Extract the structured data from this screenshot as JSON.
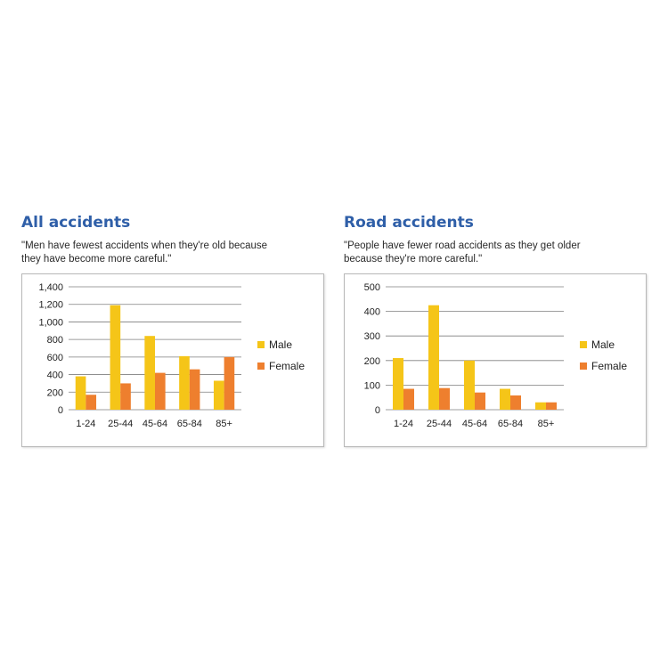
{
  "panels": [
    {
      "title": "All accidents",
      "quote": "\"Men have fewest accidents when they're old because\nthey have become more careful.\""
    },
    {
      "title": "Road accidents",
      "quote": "\"People have fewer road accidents as they get older\nbecause they're more careful.\""
    }
  ],
  "colors": {
    "male": "#f5c518",
    "female": "#ee7f2e",
    "grid": "#7f7f7f",
    "title": "#2f5fa8"
  },
  "chart_data": [
    {
      "type": "bar",
      "categories": [
        "1-24",
        "25-44",
        "45-64",
        "65-84",
        "85+"
      ],
      "series": [
        {
          "name": "Male",
          "values": [
            380,
            1190,
            840,
            610,
            330
          ]
        },
        {
          "name": "Female",
          "values": [
            170,
            300,
            420,
            460,
            600
          ]
        }
      ],
      "ylim": [
        0,
        1400
      ],
      "yticks": [
        0,
        200,
        400,
        600,
        800,
        1000,
        1200,
        1400
      ],
      "ytick_labels": [
        "0",
        "200",
        "400",
        "600",
        "800",
        "1,000",
        "1,200",
        "1,400"
      ],
      "grid": true,
      "legend": "right"
    },
    {
      "type": "bar",
      "categories": [
        "1-24",
        "25-44",
        "45-64",
        "65-84",
        "85+"
      ],
      "series": [
        {
          "name": "Male",
          "values": [
            210,
            425,
            200,
            85,
            30
          ]
        },
        {
          "name": "Female",
          "values": [
            85,
            88,
            70,
            58,
            30
          ]
        }
      ],
      "ylim": [
        0,
        500
      ],
      "yticks": [
        0,
        100,
        200,
        300,
        400,
        500
      ],
      "ytick_labels": [
        "0",
        "100",
        "200",
        "300",
        "400",
        "500"
      ],
      "grid": true,
      "legend": "right"
    }
  ]
}
